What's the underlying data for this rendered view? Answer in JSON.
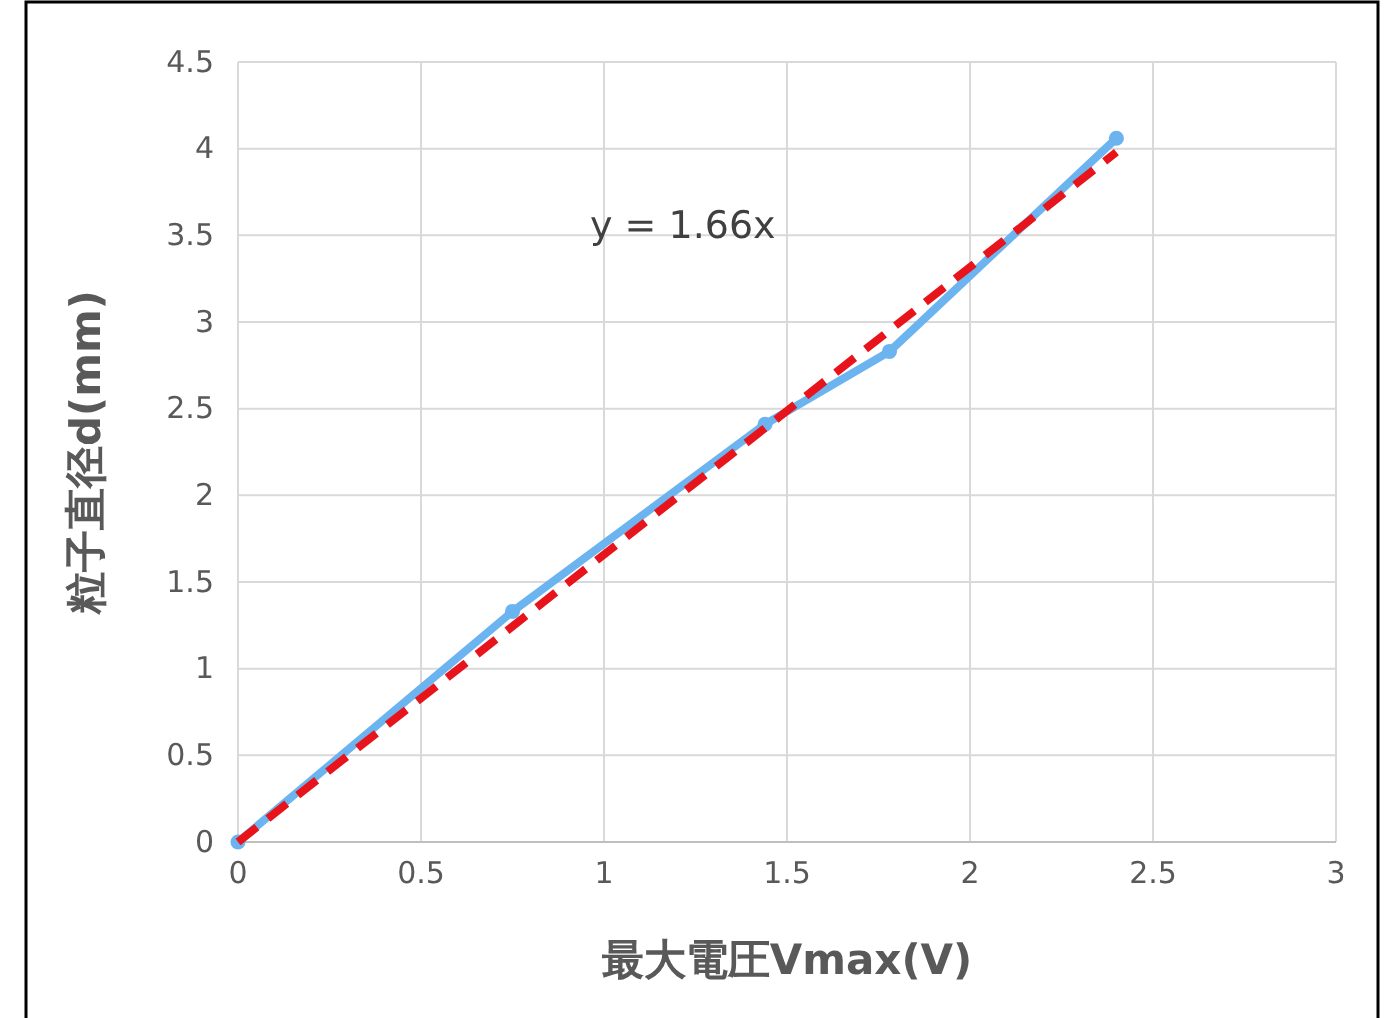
{
  "chart_data": {
    "type": "line",
    "xlabel": "最大電圧Vmax(V)",
    "ylabel": "粒子直径d(mm)",
    "annotations": [
      "y = 1.66x"
    ],
    "xlim": [
      0,
      3
    ],
    "xticks": [
      0,
      0.5,
      1,
      1.5,
      2,
      2.5,
      3
    ],
    "ylim": [
      0,
      4.5
    ],
    "yticks": [
      0,
      0.5,
      1,
      1.5,
      2,
      2.5,
      3,
      3.5,
      4,
      4.5
    ],
    "grid": true,
    "series": [
      {
        "type": "line",
        "color": "#6cb4f0",
        "x": [
          0,
          0.75,
          1.44,
          1.78,
          2.4
        ],
        "values": [
          0,
          1.33,
          2.41,
          2.83,
          4.06
        ],
        "marker": "circle",
        "line_style": "solid"
      },
      {
        "type": "line",
        "color": "#e8141c",
        "x": [
          0,
          2.4
        ],
        "values": [
          0,
          3.98
        ],
        "marker": "none",
        "line_style": "dashed"
      }
    ]
  }
}
